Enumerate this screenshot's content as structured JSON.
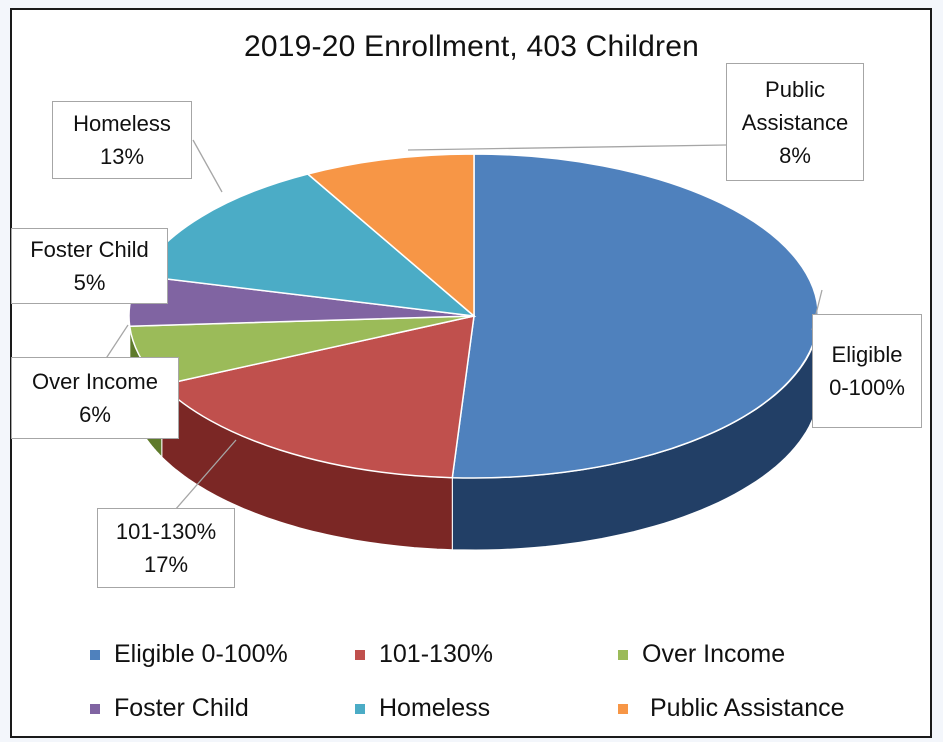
{
  "chart_data": {
    "type": "pie",
    "title": "2019-20 Enrollment, 403 Children",
    "slices": [
      {
        "label": "Eligible 0-100%",
        "callout_lines": [
          "Eligible",
          "0-100%"
        ],
        "callout_value": "",
        "value": 51,
        "color": "#4f81bd",
        "dark": "#223f66"
      },
      {
        "label": "101-130%",
        "callout_lines": [
          "101-130%"
        ],
        "callout_value": "17%",
        "value": 17,
        "color": "#c0504d",
        "dark": "#7b2725"
      },
      {
        "label": "Over Income",
        "callout_lines": [
          "Over Income"
        ],
        "callout_value": "6%",
        "value": 6,
        "color": "#9bbb59",
        "dark": "#5e7a2a"
      },
      {
        "label": "Foster Child",
        "callout_lines": [
          "Foster Child"
        ],
        "callout_value": "5%",
        "value": 5,
        "color": "#8064a2",
        "dark": "#4a3766"
      },
      {
        "label": "Homeless",
        "callout_lines": [
          "Homeless"
        ],
        "callout_value": "13%",
        "value": 13,
        "color": "#4bacc6",
        "dark": "#21697d"
      },
      {
        "label": "Public Assistance",
        "callout_lines": [
          "Public",
          "Assistance"
        ],
        "callout_value": "8%",
        "value": 8,
        "color": "#f79646",
        "dark": "#a55816"
      }
    ],
    "legend": "bottom"
  }
}
